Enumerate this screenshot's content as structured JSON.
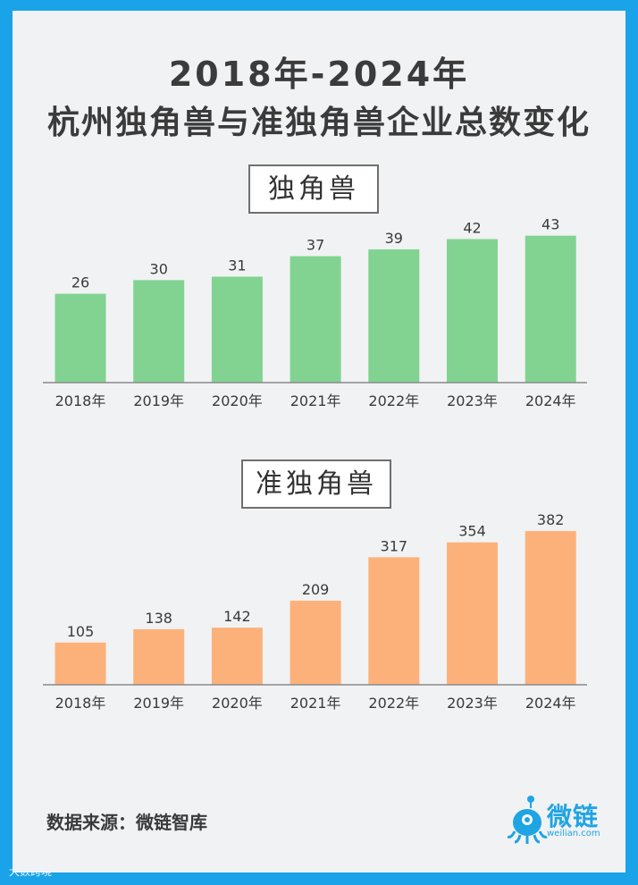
{
  "title_line1": "2018年-2024年",
  "title_line2": "杭州独角兽与准独角兽企业总数变化",
  "source": "数据来源：微链智库",
  "brand": {
    "name": "微链",
    "url": "weilian.com",
    "icon": "weilian-mascot-icon"
  },
  "watermark": "大数跨境",
  "colors": {
    "unicorn": "#82d392",
    "quasi": "#fdb17a",
    "background": "#f1f2f4",
    "frame": "#1aa3e8"
  },
  "chart_data": [
    {
      "type": "bar",
      "title": "独角兽",
      "categories": [
        "2018年",
        "2019年",
        "2020年",
        "2021年",
        "2022年",
        "2023年",
        "2024年"
      ],
      "values": [
        26,
        30,
        31,
        37,
        39,
        42,
        43
      ],
      "ylim": [
        0,
        45
      ],
      "grid": false,
      "data_labels": true
    },
    {
      "type": "bar",
      "title": "准独角兽",
      "categories": [
        "2018年",
        "2019年",
        "2020年",
        "2021年",
        "2022年",
        "2023年",
        "2024年"
      ],
      "values": [
        105,
        138,
        142,
        209,
        317,
        354,
        382
      ],
      "ylim": [
        0,
        400
      ],
      "grid": false,
      "data_labels": true
    }
  ]
}
